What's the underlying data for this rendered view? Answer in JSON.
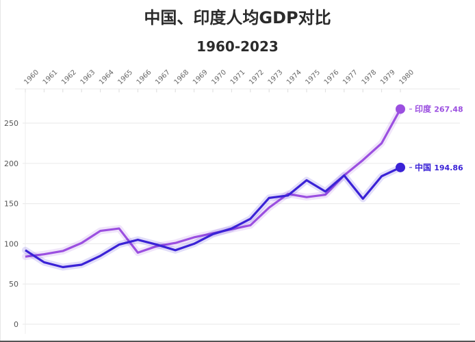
{
  "chart_data": {
    "type": "line",
    "title": "中国、印度人均GDP对比",
    "subtitle": "1960-2023",
    "xlabel": "",
    "ylabel": "",
    "x": [
      1960,
      1961,
      1962,
      1963,
      1964,
      1965,
      1966,
      1967,
      1968,
      1969,
      1970,
      1971,
      1972,
      1973,
      1974,
      1975,
      1976,
      1977,
      1978,
      1979,
      1980
    ],
    "ylim": [
      0,
      280
    ],
    "yticks": [
      0,
      50,
      100,
      150,
      200,
      250
    ],
    "grid": true,
    "legend_position": "end-labels",
    "series": [
      {
        "name": "印度",
        "color": "#9b4fe0",
        "end_label": "印度",
        "end_value": "267.48",
        "values": [
          84,
          87,
          91,
          101,
          116,
          119,
          89,
          97,
          101,
          108,
          113,
          118,
          123,
          145,
          162,
          158,
          161,
          185,
          204,
          225,
          267.48
        ]
      },
      {
        "name": "中国",
        "color": "#3a22d6",
        "end_label": "中国",
        "end_value": "194.86",
        "values": [
          92,
          77,
          71,
          74,
          85,
          99,
          105,
          99,
          92,
          100,
          112,
          119,
          131,
          157,
          160,
          179,
          165,
          185,
          156,
          184,
          194.86
        ]
      }
    ]
  }
}
